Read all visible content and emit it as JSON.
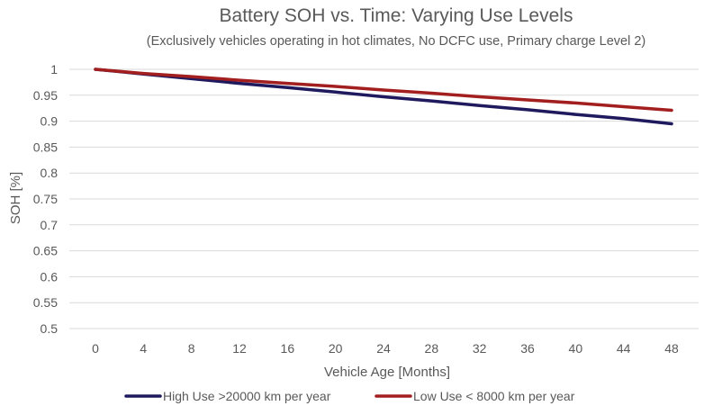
{
  "chart_data": {
    "type": "line",
    "title": "Battery SOH vs. Time: Varying Use Levels",
    "subtitle": "(Exclusively vehicles operating in hot climates, No DCFC use, Primary charge Level 2)",
    "xlabel": "Vehicle Age [Months]",
    "ylabel": "SOH [%]",
    "x": [
      0,
      4,
      8,
      12,
      16,
      20,
      24,
      28,
      32,
      36,
      40,
      44,
      48
    ],
    "xlim": [
      0,
      48
    ],
    "ylim": [
      0.5,
      1
    ],
    "x_ticks": [
      "0",
      "4",
      "8",
      "12",
      "16",
      "20",
      "24",
      "28",
      "32",
      "36",
      "40",
      "44",
      "48"
    ],
    "y_ticks": [
      "1",
      "0.95",
      "0.9",
      "0.85",
      "0.8",
      "0.75",
      "0.7",
      "0.65",
      "0.6",
      "0.55",
      "0.5"
    ],
    "y_tick_values": [
      1,
      0.95,
      0.9,
      0.85,
      0.8,
      0.75,
      0.7,
      0.65,
      0.6,
      0.55,
      0.5
    ],
    "grid": true,
    "legend_position": "bottom",
    "series": [
      {
        "name": "High Use >20000 km per year",
        "color": "#1f1a5e",
        "values": [
          1.0,
          0.991,
          0.982,
          0.973,
          0.965,
          0.956,
          0.947,
          0.939,
          0.93,
          0.922,
          0.913,
          0.905,
          0.895
        ]
      },
      {
        "name": "Low Use < 8000 km per year",
        "color": "#a31f1f",
        "values": [
          1.0,
          0.992,
          0.986,
          0.979,
          0.973,
          0.967,
          0.96,
          0.954,
          0.947,
          0.941,
          0.935,
          0.928,
          0.921
        ]
      }
    ]
  }
}
